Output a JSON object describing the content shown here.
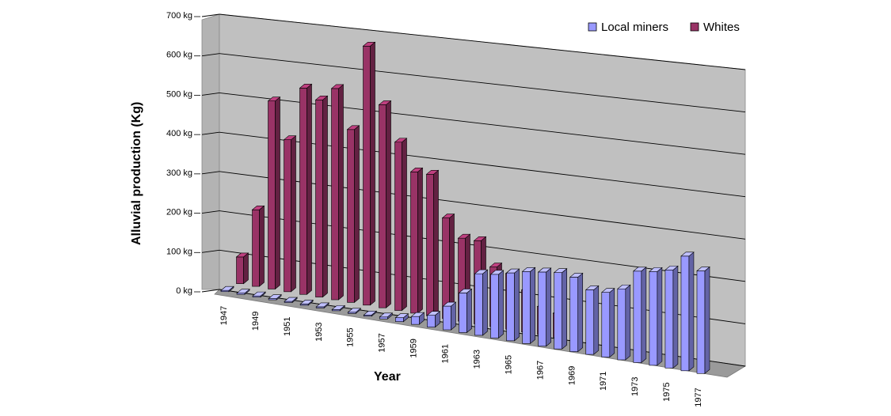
{
  "chart_data": {
    "type": "bar",
    "title": "",
    "xlabel": "Year",
    "ylabel": "Alluvial production (Kg)",
    "ylim": [
      0,
      700
    ],
    "yticks": [
      "0 kg",
      "100 kg",
      "200 kg",
      "300 kg",
      "400 kg",
      "500 kg",
      "600 kg",
      "700 kg"
    ],
    "ytick_values": [
      0,
      100,
      200,
      300,
      400,
      500,
      600,
      700
    ],
    "x_tick_labels": [
      "1947",
      "1949",
      "1951",
      "1953",
      "1955",
      "1957",
      "1959",
      "1961",
      "1963",
      "1965",
      "1967",
      "1969",
      "1971",
      "1973",
      "1975",
      "1977"
    ],
    "categories": [
      "1947",
      "1948",
      "1949",
      "1950",
      "1951",
      "1952",
      "1953",
      "1954",
      "1955",
      "1956",
      "1957",
      "1958",
      "1959",
      "1960",
      "1961",
      "1962",
      "1963",
      "1964",
      "1965",
      "1966",
      "1967",
      "1968",
      "1969",
      "1970",
      "1971",
      "1972",
      "1973",
      "1974",
      "1975",
      "1976",
      "1977"
    ],
    "legend_position": "top-right",
    "three_d": true,
    "series": [
      {
        "name": "Local miners",
        "color": "#9999ff",
        "values": [
          0,
          0,
          0,
          0,
          0,
          0,
          0,
          0,
          0,
          0,
          5,
          10,
          20,
          30,
          60,
          100,
          155,
          160,
          170,
          180,
          185,
          190,
          185,
          160,
          160,
          175,
          225,
          230,
          240,
          280,
          250
        ]
      },
      {
        "name": "Whites",
        "color": "#993366",
        "values": [
          70,
          200,
          490,
          395,
          535,
          510,
          545,
          445,
          665,
          520,
          430,
          360,
          360,
          255,
          210,
          210,
          150,
          140,
          105,
          70,
          60,
          0,
          0,
          0,
          0,
          0,
          0,
          0,
          0,
          0,
          0
        ]
      }
    ]
  }
}
